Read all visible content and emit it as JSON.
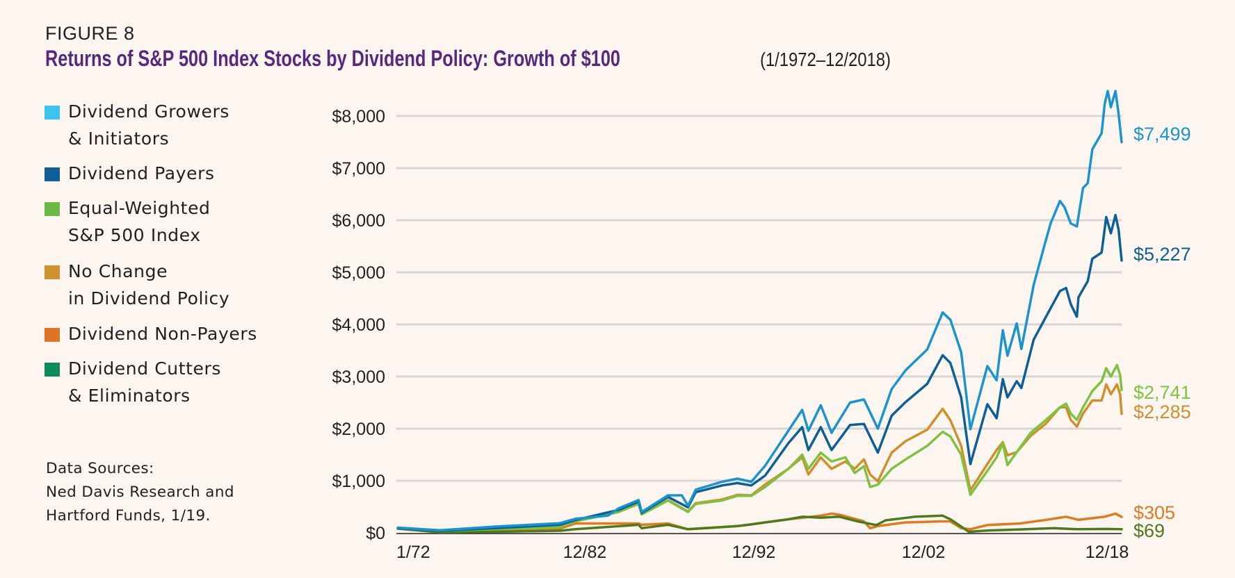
{
  "figure_label": "FIGURE 8",
  "title": "Returns of S&P 500 Index Stocks by Dividend Policy: Growth of $100",
  "subtitle": "(1/1972–12/2018)",
  "legend": [
    {
      "lines": [
        "Dividend Growers",
        "& Initiators"
      ],
      "color": "#3dc3f0"
    },
    {
      "lines": [
        "Dividend Payers"
      ],
      "color": "#0e5e98"
    },
    {
      "lines": [
        "Equal-Weighted",
        "S&P 500 Index"
      ],
      "color": "#6cb947"
    },
    {
      "lines": [
        "No Change",
        "in Dividend Policy"
      ],
      "color": "#cf922e"
    },
    {
      "lines": [
        "Dividend Non-Payers"
      ],
      "color": "#dd7524"
    },
    {
      "lines": [
        "Dividend Cutters",
        "& Eliminators"
      ],
      "color": "#0b8c5a"
    }
  ],
  "sources": [
    "Data Sources:",
    "Ned Davis Research and",
    "Hartford Funds, 1/19."
  ],
  "chart_data": {
    "type": "line",
    "title": "Returns of S&P 500 Index Stocks by Dividend Policy: Growth of $100",
    "xlabel": "",
    "ylabel": "",
    "xlim": [
      1972,
      2019
    ],
    "ylim": [
      0,
      8500
    ],
    "grid": true,
    "legend_position": "left",
    "x_ticks": [
      "1/72",
      "12/82",
      "12/92",
      "12/02",
      "12/18"
    ],
    "y_ticks": [
      {
        "value": 0,
        "label": "$0"
      },
      {
        "value": 1000,
        "label": "$1,000"
      },
      {
        "value": 2000,
        "label": "$2,000"
      },
      {
        "value": 3000,
        "label": "$3,000"
      },
      {
        "value": 4000,
        "label": "$4,000"
      },
      {
        "value": 5000,
        "label": "$5,000"
      },
      {
        "value": 6000,
        "label": "$6,000"
      },
      {
        "value": 7000,
        "label": "$7,000"
      },
      {
        "value": 8000,
        "label": "$8,000"
      }
    ],
    "series": [
      {
        "name": "Dividend Non-Payers",
        "color": "#df7a22",
        "end_label": "$305",
        "points": [
          [
            1972.1,
            90
          ],
          [
            1974.8,
            30
          ],
          [
            1978.4,
            50
          ],
          [
            1982.6,
            80
          ],
          [
            1983.6,
            180
          ],
          [
            1987.7,
            180
          ],
          [
            1987.9,
            155
          ],
          [
            1989.6,
            180
          ],
          [
            1990.9,
            70
          ],
          [
            1994.1,
            130
          ],
          [
            1995.0,
            160
          ],
          [
            1995.9,
            200
          ],
          [
            1997.4,
            260
          ],
          [
            1999.5,
            330
          ],
          [
            2000.2,
            370
          ],
          [
            2000.7,
            350
          ],
          [
            2002.3,
            220
          ],
          [
            2002.7,
            90
          ],
          [
            2003.2,
            130
          ],
          [
            2005.0,
            200
          ],
          [
            2007.4,
            220
          ],
          [
            2007.9,
            220
          ],
          [
            2008.6,
            90
          ],
          [
            2009.2,
            70
          ],
          [
            2010.3,
            150
          ],
          [
            2012.4,
            180
          ],
          [
            2014.1,
            250
          ],
          [
            2015.4,
            310
          ],
          [
            2016.2,
            250
          ],
          [
            2017.9,
            310
          ],
          [
            2018.6,
            370
          ],
          [
            2019.0,
            305
          ]
        ]
      },
      {
        "name": "Dividend Cutters & Eliminators",
        "color": "#4e7a1e",
        "end_label": "$69",
        "points": [
          [
            1972.1,
            80
          ],
          [
            1974.8,
            10
          ],
          [
            1978.4,
            20
          ],
          [
            1982.6,
            40
          ],
          [
            1983.6,
            70
          ],
          [
            1987.7,
            155
          ],
          [
            1987.9,
            90
          ],
          [
            1989.6,
            155
          ],
          [
            1990.9,
            70
          ],
          [
            1994.1,
            130
          ],
          [
            1996.4,
            220
          ],
          [
            1997.4,
            260
          ],
          [
            1998.3,
            310
          ],
          [
            1999.5,
            290
          ],
          [
            2000.7,
            310
          ],
          [
            2001.9,
            220
          ],
          [
            2003.1,
            150
          ],
          [
            2003.7,
            240
          ],
          [
            2005.6,
            310
          ],
          [
            2007.4,
            330
          ],
          [
            2007.9,
            260
          ],
          [
            2009.1,
            20
          ],
          [
            2010.3,
            45
          ],
          [
            2012.4,
            65
          ],
          [
            2014.6,
            90
          ],
          [
            2016.1,
            70
          ],
          [
            2018.0,
            75
          ],
          [
            2019.0,
            69
          ]
        ]
      },
      {
        "name": "No Change in Dividend Policy",
        "color": "#cf8f2e",
        "end_label": "$2,285",
        "points": [
          [
            1972.1,
            95
          ],
          [
            1974.8,
            45
          ],
          [
            1978.4,
            75
          ],
          [
            1982.6,
            115
          ],
          [
            1983.6,
            230
          ],
          [
            1986.4,
            410
          ],
          [
            1987.7,
            560
          ],
          [
            1987.9,
            360
          ],
          [
            1989.6,
            630
          ],
          [
            1990.9,
            410
          ],
          [
            1991.4,
            570
          ],
          [
            1993.1,
            640
          ],
          [
            1994.1,
            730
          ],
          [
            1995.0,
            720
          ],
          [
            1995.9,
            930
          ],
          [
            1997.4,
            1230
          ],
          [
            1998.3,
            1450
          ],
          [
            1998.7,
            1120
          ],
          [
            1999.5,
            1450
          ],
          [
            2000.2,
            1230
          ],
          [
            2001.1,
            1370
          ],
          [
            2001.7,
            1230
          ],
          [
            2002.3,
            1410
          ],
          [
            2002.7,
            1120
          ],
          [
            2003.2,
            990
          ],
          [
            2004.1,
            1540
          ],
          [
            2005.0,
            1760
          ],
          [
            2006.4,
            1980
          ],
          [
            2007.4,
            2380
          ],
          [
            2007.9,
            2160
          ],
          [
            2008.6,
            1670
          ],
          [
            2009.2,
            815
          ],
          [
            2010.3,
            1320
          ],
          [
            2010.9,
            1590
          ],
          [
            2011.3,
            1740
          ],
          [
            2011.6,
            1490
          ],
          [
            2012.2,
            1550
          ],
          [
            2013.1,
            1860
          ],
          [
            2014.1,
            2100
          ],
          [
            2015.0,
            2410
          ],
          [
            2015.4,
            2410
          ],
          [
            2015.7,
            2170
          ],
          [
            2016.1,
            2040
          ],
          [
            2016.5,
            2290
          ],
          [
            2017.1,
            2540
          ],
          [
            2017.7,
            2540
          ],
          [
            2018.0,
            2850
          ],
          [
            2018.3,
            2660
          ],
          [
            2018.7,
            2850
          ],
          [
            2018.9,
            2660
          ],
          [
            2019.0,
            2285
          ]
        ]
      },
      {
        "name": "Equal-Weighted S&P 500 Index",
        "color": "#7fc241",
        "end_label": "$2,741",
        "points": [
          [
            1972.1,
            90
          ],
          [
            1974.8,
            40
          ],
          [
            1978.4,
            70
          ],
          [
            1982.6,
            110
          ],
          [
            1983.6,
            220
          ],
          [
            1986.4,
            400
          ],
          [
            1987.7,
            555
          ],
          [
            1987.9,
            355
          ],
          [
            1989.6,
            620
          ],
          [
            1990.9,
            400
          ],
          [
            1991.4,
            555
          ],
          [
            1993.1,
            620
          ],
          [
            1994.1,
            710
          ],
          [
            1995.0,
            710
          ],
          [
            1995.9,
            880
          ],
          [
            1997.4,
            1230
          ],
          [
            1998.3,
            1500
          ],
          [
            1998.7,
            1230
          ],
          [
            1999.5,
            1540
          ],
          [
            2000.2,
            1370
          ],
          [
            2001.1,
            1450
          ],
          [
            2001.7,
            1150
          ],
          [
            2002.3,
            1280
          ],
          [
            2002.7,
            880
          ],
          [
            2003.2,
            925
          ],
          [
            2004.1,
            1230
          ],
          [
            2005.0,
            1410
          ],
          [
            2006.4,
            1670
          ],
          [
            2007.4,
            1940
          ],
          [
            2007.9,
            1850
          ],
          [
            2008.6,
            1500
          ],
          [
            2009.2,
            730
          ],
          [
            2010.3,
            1190
          ],
          [
            2010.9,
            1450
          ],
          [
            2011.3,
            1720
          ],
          [
            2011.6,
            1300
          ],
          [
            2012.2,
            1550
          ],
          [
            2013.1,
            1920
          ],
          [
            2014.1,
            2170
          ],
          [
            2015.0,
            2410
          ],
          [
            2015.4,
            2480
          ],
          [
            2015.7,
            2290
          ],
          [
            2016.1,
            2170
          ],
          [
            2016.5,
            2410
          ],
          [
            2017.1,
            2720
          ],
          [
            2017.7,
            2910
          ],
          [
            2018.0,
            3160
          ],
          [
            2018.3,
            3000
          ],
          [
            2018.7,
            3220
          ],
          [
            2018.9,
            3030
          ],
          [
            2019.0,
            2741
          ]
        ]
      },
      {
        "name": "Dividend Payers",
        "color": "#0d5f96",
        "end_label": "$5,227",
        "points": [
          [
            1972.1,
            90
          ],
          [
            1974.8,
            40
          ],
          [
            1978.4,
            90
          ],
          [
            1982.6,
            155
          ],
          [
            1983.6,
            245
          ],
          [
            1986.4,
            440
          ],
          [
            1987.7,
            600
          ],
          [
            1987.9,
            380
          ],
          [
            1989.6,
            690
          ],
          [
            1990.9,
            490
          ],
          [
            1991.4,
            780
          ],
          [
            1993.1,
            910
          ],
          [
            1994.1,
            955
          ],
          [
            1995.0,
            910
          ],
          [
            1995.9,
            1100
          ],
          [
            1997.4,
            1720
          ],
          [
            1998.3,
            2030
          ],
          [
            1998.7,
            1590
          ],
          [
            1999.5,
            2030
          ],
          [
            2000.2,
            1590
          ],
          [
            2001.4,
            2070
          ],
          [
            2002.3,
            2090
          ],
          [
            2003.2,
            1540
          ],
          [
            2004.1,
            2250
          ],
          [
            2005.0,
            2510
          ],
          [
            2006.4,
            2860
          ],
          [
            2007.4,
            3410
          ],
          [
            2007.9,
            3260
          ],
          [
            2008.6,
            2600
          ],
          [
            2009.2,
            1320
          ],
          [
            2010.3,
            2470
          ],
          [
            2010.9,
            2200
          ],
          [
            2011.3,
            2950
          ],
          [
            2011.6,
            2600
          ],
          [
            2012.2,
            2910
          ],
          [
            2012.5,
            2780
          ],
          [
            2013.3,
            3710
          ],
          [
            2014.1,
            4150
          ],
          [
            2015.0,
            4640
          ],
          [
            2015.4,
            4700
          ],
          [
            2015.7,
            4390
          ],
          [
            2016.1,
            4150
          ],
          [
            2016.2,
            4520
          ],
          [
            2016.8,
            4830
          ],
          [
            2017.1,
            5260
          ],
          [
            2017.7,
            5380
          ],
          [
            2018.0,
            6060
          ],
          [
            2018.3,
            5750
          ],
          [
            2018.6,
            6100
          ],
          [
            2018.8,
            5820
          ],
          [
            2019.0,
            5227
          ]
        ]
      },
      {
        "name": "Dividend Growers & Initiators",
        "color": "#1a94cf",
        "end_label": "$7,499",
        "points": [
          [
            1972.1,
            100
          ],
          [
            1974.8,
            50
          ],
          [
            1978.4,
            120
          ],
          [
            1982.6,
            185
          ],
          [
            1983.6,
            270
          ],
          [
            1985.7,
            330
          ],
          [
            1986.4,
            470
          ],
          [
            1987.7,
            630
          ],
          [
            1987.9,
            400
          ],
          [
            1989.6,
            720
          ],
          [
            1990.5,
            720
          ],
          [
            1990.9,
            520
          ],
          [
            1991.4,
            830
          ],
          [
            1993.1,
            980
          ],
          [
            1994.1,
            1040
          ],
          [
            1995.0,
            980
          ],
          [
            1995.9,
            1290
          ],
          [
            1997.4,
            1960
          ],
          [
            1998.3,
            2360
          ],
          [
            1998.7,
            1960
          ],
          [
            1999.5,
            2450
          ],
          [
            2000.2,
            1920
          ],
          [
            2001.4,
            2500
          ],
          [
            2002.3,
            2560
          ],
          [
            2003.2,
            2000
          ],
          [
            2004.1,
            2760
          ],
          [
            2005.0,
            3120
          ],
          [
            2006.4,
            3520
          ],
          [
            2007.4,
            4230
          ],
          [
            2007.9,
            4090
          ],
          [
            2008.6,
            3470
          ],
          [
            2009.2,
            1990
          ],
          [
            2010.3,
            3200
          ],
          [
            2010.9,
            2930
          ],
          [
            2011.3,
            3890
          ],
          [
            2011.6,
            3400
          ],
          [
            2012.2,
            4020
          ],
          [
            2012.5,
            3530
          ],
          [
            2013.3,
            4760
          ],
          [
            2014.1,
            5630
          ],
          [
            2014.4,
            5940
          ],
          [
            2015.0,
            6370
          ],
          [
            2015.3,
            6250
          ],
          [
            2015.7,
            5940
          ],
          [
            2016.1,
            5880
          ],
          [
            2016.5,
            6620
          ],
          [
            2016.8,
            6710
          ],
          [
            2017.1,
            7360
          ],
          [
            2017.7,
            7670
          ],
          [
            2017.9,
            8230
          ],
          [
            2018.1,
            8480
          ],
          [
            2018.3,
            8170
          ],
          [
            2018.6,
            8480
          ],
          [
            2018.8,
            8040
          ],
          [
            2019.0,
            7499
          ]
        ]
      }
    ]
  }
}
